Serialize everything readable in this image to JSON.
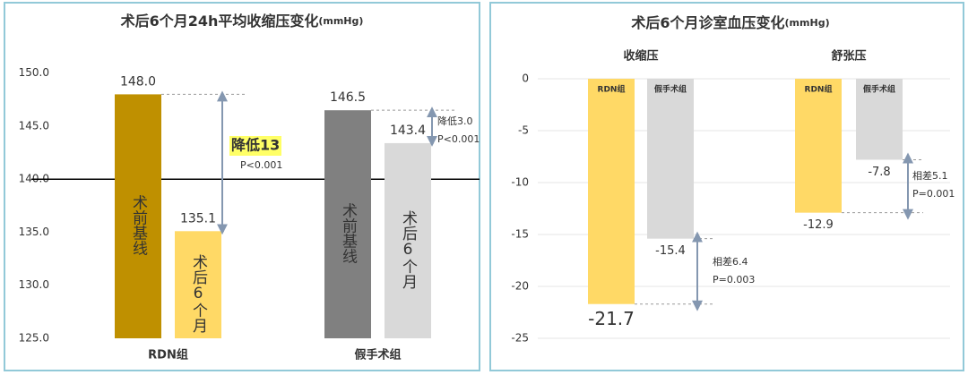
{
  "chart_data": [
    {
      "type": "bar",
      "title": "术后6个月24h平均收缩压变化",
      "title_unit": "(mmHg)",
      "categories": [
        "RDN组",
        "假手术组"
      ],
      "series": [
        {
          "name": "术前基线",
          "colors": [
            "#bf9000",
            "#808080"
          ],
          "values": [
            148.0,
            146.5
          ],
          "value_labels": [
            "148.0",
            "146.5"
          ]
        },
        {
          "name": "术后6个月",
          "colors": [
            "#ffd966",
            "#d9d9d9"
          ],
          "values": [
            135.1,
            143.4
          ],
          "value_labels": [
            "135.1",
            "143.4"
          ]
        }
      ],
      "ylim": [
        125,
        152
      ],
      "yticks": [
        {
          "value": 125,
          "label": "125.0"
        },
        {
          "value": 130,
          "label": "130.0"
        },
        {
          "value": 135,
          "label": "135.0"
        },
        {
          "value": 140,
          "label": "140.0"
        },
        {
          "value": 145,
          "label": "145.0"
        },
        {
          "value": 150,
          "label": "150.0"
        }
      ],
      "reference_line": 140,
      "grid": false,
      "annotations": [
        "降低13",
        "P<0.001",
        "降低3.0",
        "P<0.001"
      ]
    },
    {
      "type": "bar",
      "title": "术后6个月诊室血压变化",
      "title_unit": "(mmHg)",
      "categories": [
        "收缩压",
        "舒张压"
      ],
      "series": [
        {
          "name": "RDN组",
          "color": "#ffd966",
          "values": [
            -21.7,
            -12.9
          ]
        },
        {
          "name": "假手术组",
          "color": "#d9d9d9",
          "values": [
            -15.4,
            -7.8
          ]
        }
      ],
      "ylim": [
        -25,
        0
      ],
      "yticks": [
        0,
        -5,
        -10,
        -15,
        -20,
        -25
      ],
      "grid": true,
      "annotations": [
        "相差6.4",
        "P=0.003",
        "相差5.1",
        "P=0.001"
      ]
    }
  ]
}
